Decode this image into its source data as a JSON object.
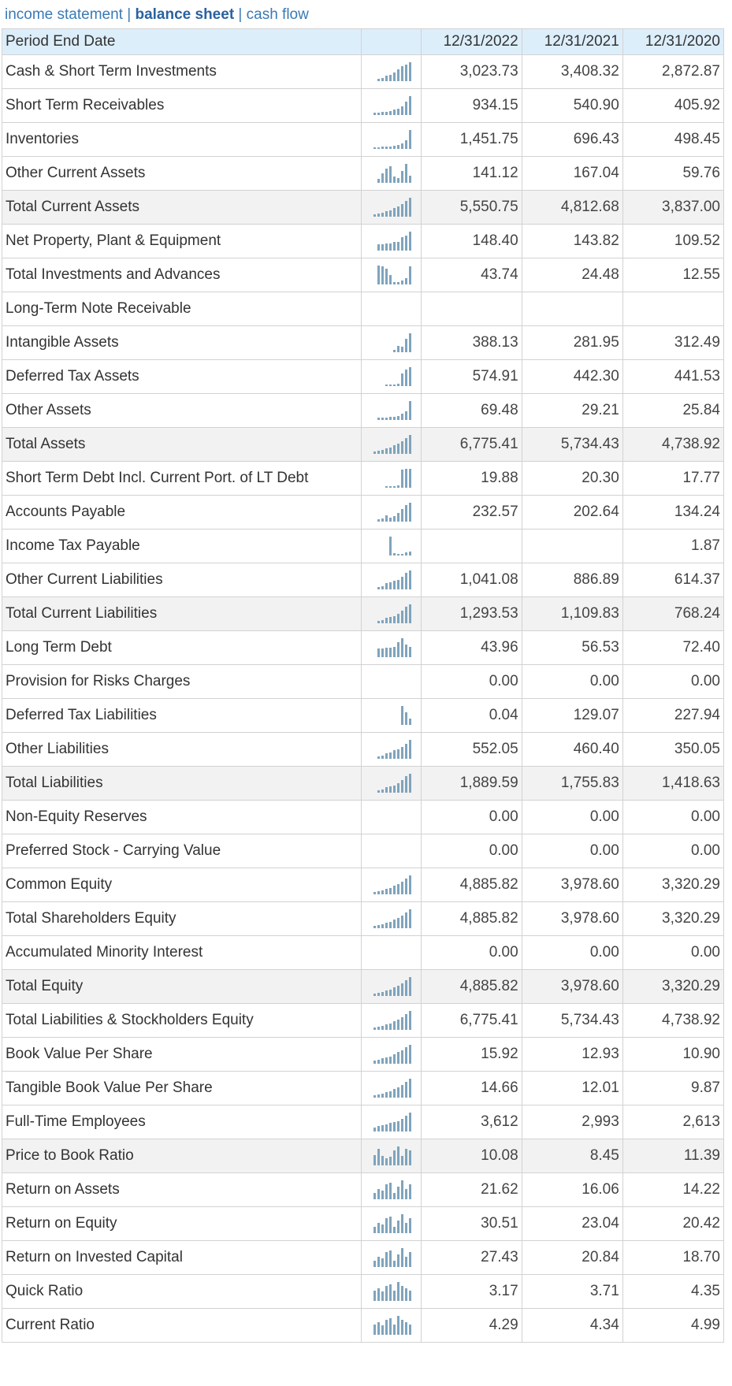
{
  "nav": {
    "income_statement": "income statement",
    "separator": "|",
    "balance_sheet": "balance sheet",
    "cash_flow": "cash flow"
  },
  "colors": {
    "header_bg": "#ddeefb",
    "link": "#3a7ab5",
    "sparkline": "#7fa4bd",
    "total_row_bg": "#f2f2f2"
  },
  "table": {
    "header_label": "Period End Date",
    "dates": [
      "12/31/2022",
      "12/31/2021",
      "12/31/2020"
    ],
    "rows": [
      {
        "label": "Cash & Short Term Investments",
        "values": [
          "3,023.73",
          "3,408.32",
          "2,872.87"
        ],
        "spark": [
          2,
          3,
          5,
          6,
          8,
          11,
          14,
          16,
          18
        ]
      },
      {
        "label": "Short Term Receivables",
        "values": [
          "934.15",
          "540.90",
          "405.92"
        ],
        "spark": [
          1,
          2,
          2,
          3,
          3,
          4,
          5,
          6,
          8,
          13,
          18
        ]
      },
      {
        "label": "Inventories",
        "values": [
          "1,451.75",
          "696.43",
          "498.45"
        ],
        "spark": [
          1,
          1,
          1,
          2,
          2,
          2,
          3,
          4,
          5,
          8,
          18
        ]
      },
      {
        "label": "Other Current Assets",
        "values": [
          "141.12",
          "167.04",
          "59.76"
        ],
        "spark": [
          3,
          8,
          12,
          14,
          5,
          4,
          10,
          16,
          6
        ]
      },
      {
        "label": "Total Current Assets",
        "values": [
          "5,550.75",
          "4,812.68",
          "3,837.00"
        ],
        "spark": [
          2,
          3,
          4,
          5,
          6,
          8,
          10,
          12,
          15,
          18
        ]
      },
      {
        "label": "Net Property, Plant & Equipment",
        "values": [
          "148.40",
          "143.82",
          "109.52"
        ],
        "spark": [
          6,
          6,
          7,
          7,
          8,
          8,
          13,
          14,
          18
        ]
      },
      {
        "label": "Total Investments and Advances",
        "values": [
          "43.74",
          "24.48",
          "12.55"
        ],
        "spark": [
          18,
          17,
          15,
          9,
          2,
          2,
          4,
          6,
          17
        ]
      },
      {
        "label": "Long-Term Note Receivable",
        "values": [
          "",
          "",
          ""
        ],
        "spark": []
      },
      {
        "label": "Intangible Assets",
        "values": [
          "388.13",
          "281.95",
          "312.49"
        ],
        "spark": [
          2,
          6,
          5,
          13,
          18
        ]
      },
      {
        "label": "Deferred Tax Assets",
        "values": [
          "574.91",
          "442.30",
          "441.53"
        ],
        "spark": [
          1,
          1,
          1,
          2,
          12,
          16,
          18
        ]
      },
      {
        "label": "Other Assets",
        "values": [
          "69.48",
          "29.21",
          "25.84"
        ],
        "spark": [
          2,
          2,
          2,
          3,
          3,
          4,
          6,
          8,
          18
        ]
      },
      {
        "label": "Total Assets",
        "values": [
          "6,775.41",
          "5,734.43",
          "4,738.92"
        ],
        "spark": [
          2,
          3,
          4,
          5,
          6,
          8,
          10,
          12,
          15,
          18
        ]
      },
      {
        "label": "Short Term Debt Incl. Current Port. of LT Debt",
        "values": [
          "19.88",
          "20.30",
          "17.77"
        ],
        "spark": [
          1,
          1,
          1,
          2,
          17,
          18,
          18
        ]
      },
      {
        "label": "Accounts Payable",
        "values": [
          "232.57",
          "202.64",
          "134.24"
        ],
        "spark": [
          2,
          3,
          6,
          4,
          5,
          8,
          12,
          16,
          18
        ]
      },
      {
        "label": "Income Tax Payable",
        "values": [
          "",
          "",
          "1.87"
        ],
        "spark": [
          18,
          2,
          1,
          1,
          3,
          4
        ]
      },
      {
        "label": "Other Current Liabilities",
        "values": [
          "1,041.08",
          "886.89",
          "614.37"
        ],
        "spark": [
          2,
          3,
          6,
          7,
          8,
          9,
          12,
          16,
          18
        ]
      },
      {
        "label": "Total Current Liabilities",
        "values": [
          "1,293.53",
          "1,109.83",
          "768.24"
        ],
        "spark": [
          2,
          3,
          5,
          6,
          7,
          9,
          12,
          16,
          18
        ]
      },
      {
        "label": "Long Term Debt",
        "values": [
          "43.96",
          "56.53",
          "72.40"
        ],
        "spark": [
          8,
          8,
          9,
          9,
          10,
          14,
          18,
          12,
          10
        ]
      },
      {
        "label": "Provision for Risks Charges",
        "values": [
          "0.00",
          "0.00",
          "0.00"
        ],
        "spark": []
      },
      {
        "label": "Deferred Tax Liabilities",
        "values": [
          "0.04",
          "129.07",
          "227.94"
        ],
        "spark": [
          18,
          12,
          6
        ]
      },
      {
        "label": "Other Liabilities",
        "values": [
          "552.05",
          "460.40",
          "350.05"
        ],
        "spark": [
          2,
          3,
          5,
          6,
          8,
          9,
          11,
          14,
          18
        ]
      },
      {
        "label": "Total Liabilities",
        "values": [
          "1,889.59",
          "1,755.83",
          "1,418.63"
        ],
        "spark": [
          2,
          3,
          5,
          6,
          7,
          9,
          12,
          16,
          18
        ]
      },
      {
        "label": "Non-Equity Reserves",
        "values": [
          "0.00",
          "0.00",
          "0.00"
        ],
        "spark": []
      },
      {
        "label": "Preferred Stock - Carrying Value",
        "values": [
          "0.00",
          "0.00",
          "0.00"
        ],
        "spark": []
      },
      {
        "label": "Common Equity",
        "values": [
          "4,885.82",
          "3,978.60",
          "3,320.29"
        ],
        "spark": [
          2,
          3,
          4,
          5,
          6,
          8,
          10,
          12,
          15,
          18
        ]
      },
      {
        "label": "Total Shareholders Equity",
        "values": [
          "4,885.82",
          "3,978.60",
          "3,320.29"
        ],
        "spark": [
          2,
          3,
          4,
          5,
          6,
          8,
          10,
          12,
          15,
          18
        ]
      },
      {
        "label": "Accumulated Minority Interest",
        "values": [
          "0.00",
          "0.00",
          "0.00"
        ],
        "spark": []
      },
      {
        "label": "Total Equity",
        "values": [
          "4,885.82",
          "3,978.60",
          "3,320.29"
        ],
        "spark": [
          2,
          3,
          4,
          5,
          6,
          8,
          10,
          12,
          15,
          18
        ]
      },
      {
        "label": "Total Liabilities & Stockholders Equity",
        "values": [
          "6,775.41",
          "5,734.43",
          "4,738.92"
        ],
        "spark": [
          2,
          3,
          4,
          5,
          6,
          8,
          10,
          12,
          15,
          18
        ]
      },
      {
        "label": "Book Value Per Share",
        "values": [
          "15.92",
          "12.93",
          "10.90"
        ],
        "spark": [
          3,
          4,
          5,
          6,
          7,
          9,
          11,
          13,
          16,
          18
        ]
      },
      {
        "label": "Tangible Book Value Per Share",
        "values": [
          "14.66",
          "12.01",
          "9.87"
        ],
        "spark": [
          2,
          3,
          4,
          5,
          6,
          8,
          10,
          12,
          15,
          18
        ]
      },
      {
        "label": "Full-Time Employees",
        "values": [
          "3,612",
          "2,993",
          "2,613"
        ],
        "spark": [
          4,
          5,
          6,
          7,
          8,
          9,
          10,
          12,
          15,
          18
        ]
      },
      {
        "label": "Price to Book Ratio",
        "values": [
          "10.08",
          "8.45",
          "11.39"
        ],
        "spark": [
          10,
          16,
          9,
          7,
          8,
          14,
          18,
          9,
          16,
          14
        ]
      },
      {
        "label": "Return on Assets",
        "values": [
          "21.62",
          "16.06",
          "14.22"
        ],
        "spark": [
          6,
          10,
          8,
          14,
          16,
          6,
          12,
          18,
          10,
          14
        ]
      },
      {
        "label": "Return on Equity",
        "values": [
          "30.51",
          "23.04",
          "20.42"
        ],
        "spark": [
          6,
          10,
          8,
          14,
          16,
          6,
          12,
          18,
          10,
          14
        ]
      },
      {
        "label": "Return on Invested Capital",
        "values": [
          "27.43",
          "20.84",
          "18.70"
        ],
        "spark": [
          6,
          10,
          8,
          14,
          16,
          6,
          12,
          18,
          10,
          14
        ]
      },
      {
        "label": "Quick Ratio",
        "values": [
          "3.17",
          "3.71",
          "4.35"
        ],
        "spark": [
          10,
          12,
          9,
          14,
          16,
          10,
          18,
          14,
          12,
          10
        ]
      },
      {
        "label": "Current Ratio",
        "values": [
          "4.29",
          "4.34",
          "4.99"
        ],
        "spark": [
          10,
          12,
          9,
          14,
          16,
          10,
          18,
          14,
          12,
          10
        ]
      }
    ]
  }
}
